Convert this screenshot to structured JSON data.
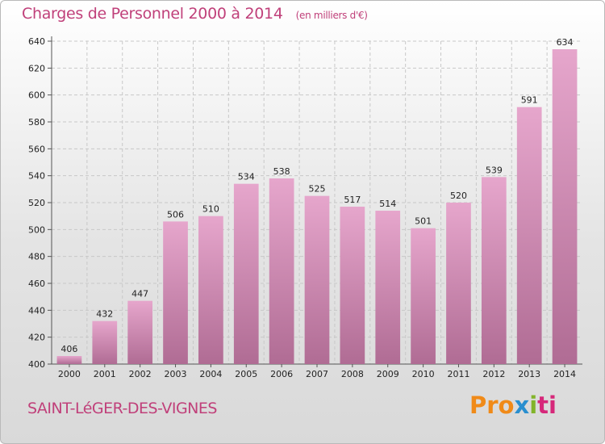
{
  "header": {
    "title": "Charges de Personnel 2000 à 2014",
    "subtitle": "(en milliers d'€)"
  },
  "footer": {
    "commune": "SAINT-LéGER-DES-VIGNES",
    "brand_parts": [
      "Pro",
      "x",
      "i",
      "ti"
    ]
  },
  "colors": {
    "title": "#c0407a",
    "bar_top": "#e6a6cc",
    "bar_bottom": "#b06c94"
  },
  "chart_data": {
    "type": "bar",
    "categories": [
      "2000",
      "2001",
      "2002",
      "2003",
      "2004",
      "2005",
      "2006",
      "2007",
      "2008",
      "2009",
      "2010",
      "2011",
      "2012",
      "2013",
      "2014"
    ],
    "values": [
      406,
      432,
      447,
      506,
      510,
      534,
      538,
      525,
      517,
      514,
      501,
      520,
      539,
      591,
      634
    ],
    "title": "Charges de Personnel 2000 à 2014",
    "subtitle": "(en milliers d'€)",
    "xlabel": "",
    "ylabel": "",
    "ylim": [
      400,
      640
    ],
    "yticks": [
      400,
      420,
      440,
      460,
      480,
      500,
      520,
      540,
      560,
      580,
      600,
      620,
      640
    ],
    "grid": true,
    "legend": "none"
  }
}
